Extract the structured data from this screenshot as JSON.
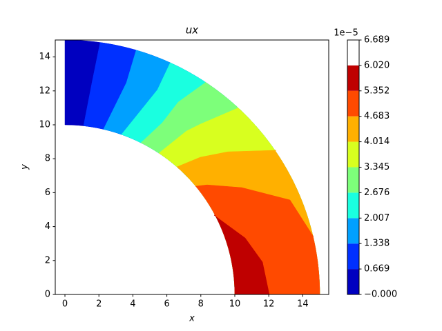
{
  "chart_data": {
    "type": "contourf",
    "title": "ux",
    "xlabel": "x",
    "ylabel": "y",
    "xlim": [
      -0.57,
      15.53
    ],
    "ylim": [
      0,
      15
    ],
    "xticks": [
      0,
      2,
      4,
      6,
      8,
      10,
      12,
      14
    ],
    "yticks": [
      0,
      2,
      4,
      6,
      8,
      10,
      12,
      14
    ],
    "inner_radius": 10,
    "outer_radius": 15,
    "boundaries": [
      [
        [
          1.1,
          9.96
        ],
        [
          1.59,
          12.48
        ],
        [
          2.07,
          14.84
        ]
      ],
      [
        [
          2.28,
          9.76
        ],
        [
          3.62,
          12.48
        ],
        [
          4.19,
          14.39
        ]
      ],
      [
        [
          3.33,
          9.43
        ],
        [
          5.45,
          12.07
        ],
        [
          6.18,
          13.62
        ]
      ],
      [
        [
          4.47,
          8.94
        ],
        [
          5.73,
          10.12
        ],
        [
          6.67,
          11.34
        ],
        [
          8.25,
          12.48
        ]
      ],
      [
        [
          5.53,
          8.33
        ],
        [
          7.15,
          9.63
        ],
        [
          7.97,
          10.04
        ],
        [
          10.16,
          10.98
        ]
      ],
      [
        [
          6.59,
          7.52
        ],
        [
          7.97,
          8.09
        ],
        [
          9.59,
          8.41
        ],
        [
          12.44,
          8.5
        ]
      ],
      [
        [
          7.68,
          6.38
        ],
        [
          8.37,
          6.46
        ],
        [
          10.41,
          6.3
        ],
        [
          13.25,
          5.57
        ],
        [
          14.63,
          3.41
        ]
      ],
      [
        [
          8.78,
          4.67
        ],
        [
          10.61,
          3.33
        ],
        [
          11.63,
          1.91
        ],
        [
          12.03,
          0
        ]
      ]
    ],
    "colorbar": {
      "offset_label": "1e−5",
      "ticks": [
        {
          "value": 0,
          "label": "−0.000"
        },
        0.669,
        1.338,
        2.007,
        2.676,
        3.345,
        4.014,
        4.683,
        5.352,
        {
          "value": 6.02,
          "label": "6.020"
        },
        6.689
      ],
      "colors": [
        "#0000c0",
        "#0030ff",
        "#00a0ff",
        "#1affe0",
        "#7dff7a",
        "#d8ff1f",
        "#ffb000",
        "#ff4a00",
        "#bf0000"
      ]
    }
  }
}
